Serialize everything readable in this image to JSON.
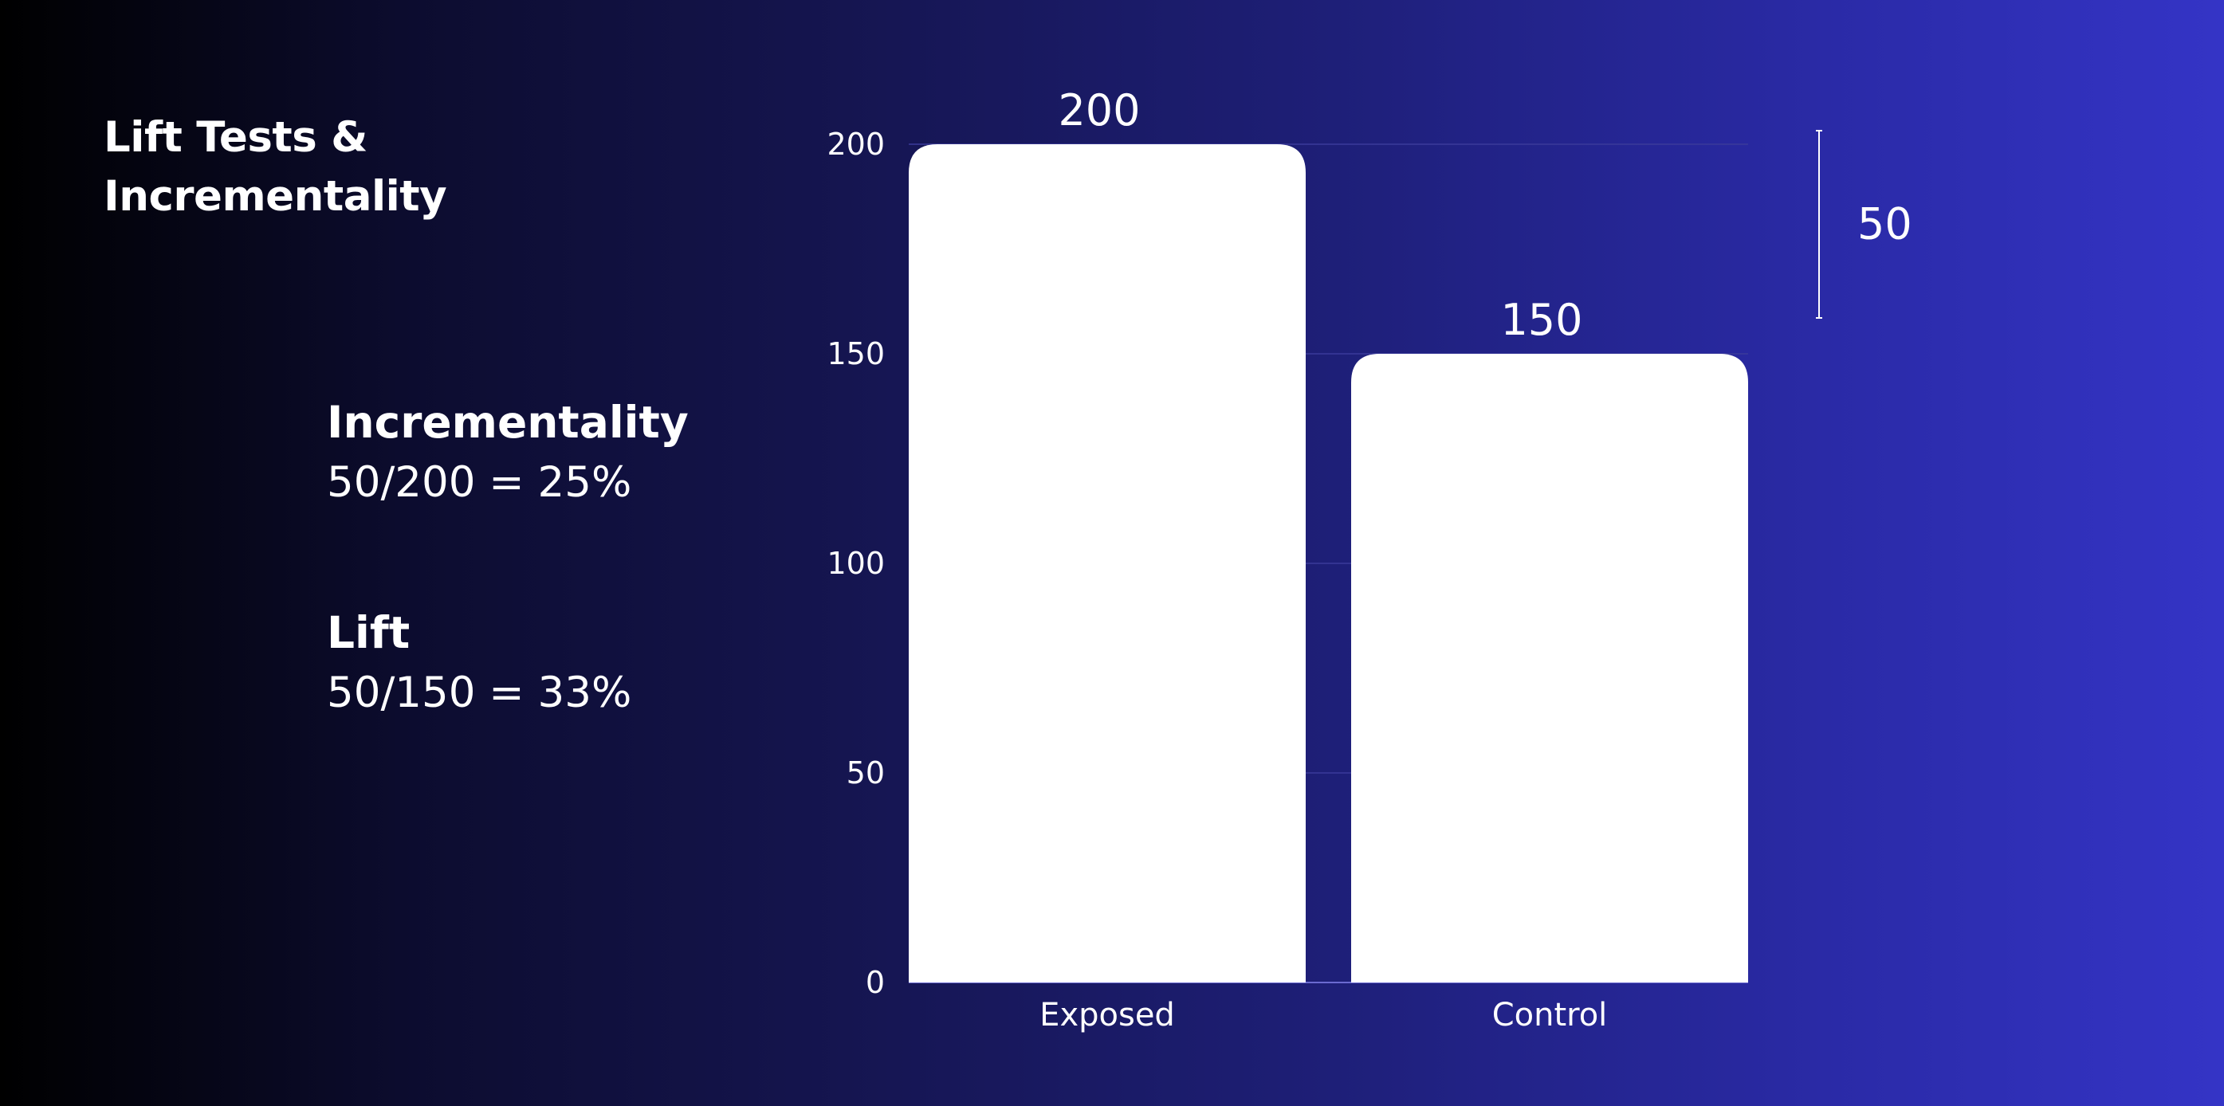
{
  "title": {
    "line1": "Lift Tests &",
    "line2": "Incrementality"
  },
  "metrics": {
    "incrementality": {
      "label": "Incrementality",
      "value": "50/200 = 25%"
    },
    "lift": {
      "label": "Lift",
      "value": "50/150 = 33%"
    }
  },
  "colors": {
    "bar": "#ffffff",
    "gridline": "#3a3a9a",
    "text": "#ffffff"
  },
  "chart_data": {
    "type": "bar",
    "categories": [
      "Exposed",
      "Control"
    ],
    "values": [
      200,
      150
    ],
    "data_labels": [
      "200",
      "150"
    ],
    "yticks": [
      0,
      50,
      100,
      150,
      200
    ],
    "ylim": [
      0,
      200
    ],
    "grid": true,
    "annotation": {
      "label": "50",
      "from": 150,
      "to": 200
    }
  }
}
